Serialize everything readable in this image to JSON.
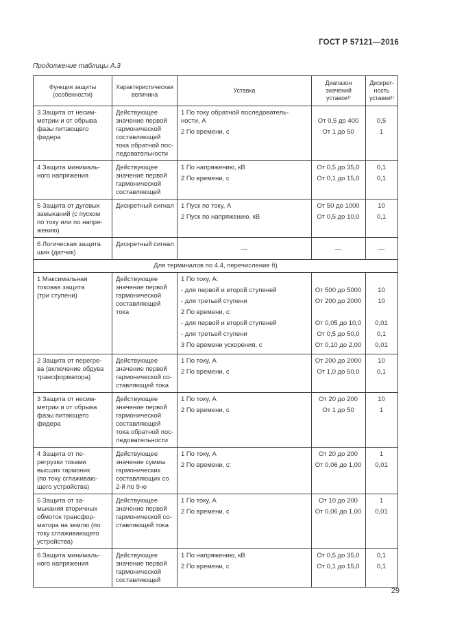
{
  "page": {
    "doc_code": "ГОСТ Р 57121—2016",
    "table_caption": "Продолжение таблицы А.3",
    "page_number": "29"
  },
  "colors": {
    "text": "#333333",
    "border": "#3f3f3f",
    "background": "#ffffff"
  },
  "table": {
    "columns": [
      {
        "label": "Функция защиты\n(особенности)"
      },
      {
        "label": "Характеристическая\nвеличина"
      },
      {
        "label": "Уставка"
      },
      {
        "label": "Диапазон\nзначений\nуставок¹⁾"
      },
      {
        "label": "Дискрет-\nность\nуставки¹⁾"
      }
    ],
    "sections": [
      {
        "header": null,
        "rows": [
          {
            "function": "3 Защита от несим-\nметрии и от обрыва\nфазы питающего\nфидера",
            "characteristic": "Действующее\nзначение первой\nгармонической\nсоставляющей\nтока обратной пос-\nледовательности",
            "settings": [
              {
                "text": "1 По току обратной последователь-\nности, А",
                "range": "От 0,5 до 400",
                "disc": "0,5"
              },
              {
                "text": "2 По времени, с",
                "range": "От 1 до 50",
                "disc": "1"
              }
            ]
          },
          {
            "function": "4 Защита минималь-\nного напряжения",
            "characteristic": "Действующее\nзначение первой\nгармонической\nсоставляющей",
            "settings": [
              {
                "text": "1 По напряжению, кВ",
                "range": "От 0,5 до 35,0",
                "disc": "0,1"
              },
              {
                "text": "2 По времени, с",
                "range": "От 0,1 до 15,0",
                "disc": "0,1"
              }
            ]
          },
          {
            "function": "5 Защита от дуговых\nзамыканий (с пуском\nпо току или по напря-\nжению)",
            "characteristic": "Дискретный сигнал",
            "settings": [
              {
                "text": "1 Пуск по току, А",
                "range": "От 50 до 1000",
                "disc": "10"
              },
              {
                "text": "2 Пуск по напряжению, кВ",
                "range": "От 0,5 до 10,0",
                "disc": "0,1"
              }
            ]
          },
          {
            "function": "6 Логическая защита\nшин (датчик)",
            "characteristic": "Дискретный сигнал",
            "settings": [
              {
                "text": "—",
                "range": "—",
                "disc": "—",
                "dash": true
              }
            ]
          }
        ]
      },
      {
        "header": "Для терминалов по 4.4, перечисление б)",
        "rows": [
          {
            "function": "1 Максимальная\nтоковая защита\n(три ступени)",
            "characteristic": "Действующее\nзначение первой\nгармонической\nсоставляющей\nтока",
            "settings": [
              {
                "text": "1 По току, А:",
                "range": "",
                "disc": ""
              },
              {
                "text": "- для первой и второй ступеней",
                "range": "От 500 до 5000",
                "disc": "10"
              },
              {
                "text": "- для третьей ступени",
                "range": "От 200 до 2000",
                "disc": "10"
              },
              {
                "text": "2 По времени, с:",
                "range": "",
                "disc": ""
              },
              {
                "text": "- для первой и второй ступеней",
                "range": "От 0,05 до 10,0",
                "disc": "0,01"
              },
              {
                "text": "- для третьей ступени",
                "range": "От 0,5 до 50,0",
                "disc": "0,1"
              },
              {
                "text": "3 По времени ускорения, с",
                "range": "От 0,10 до 2,00",
                "disc": "0,01"
              }
            ]
          },
          {
            "function": "2 Защита от перегре-\nва (включение обдува\nтрансформатора)",
            "characteristic": "Действующее\nзначение первой\nгармонической со-\nставляющей тока",
            "settings": [
              {
                "text": "1 По току, А",
                "range": "От 200 до 2000",
                "disc": "10"
              },
              {
                "text": "2 По времени, с",
                "range": "От 1,0 до 50,0",
                "disc": "0,1"
              }
            ]
          },
          {
            "function": "3 Защита от несим-\nметрии и от обрыва\nфазы питающего\nфидера",
            "characteristic": "Действующее\nзначение первой\nгармонической\nсоставляющей\nтока обратной пос-\nледовательности",
            "settings": [
              {
                "text": "1 По току, А",
                "range": "От 20 до 200",
                "disc": "10"
              },
              {
                "text": "2 По времени, с",
                "range": "От 1 до 50",
                "disc": "1"
              }
            ]
          },
          {
            "function": "4 Защита от пе-\nрегрузки токами\nвысших гармоник\n(по току сглаживаю-\nщего устройства)",
            "characteristic": "Действующее\nзначение суммы\nгармонических\nсоставляющих со\n2-й по 9-ю",
            "settings": [
              {
                "text": "1 По току, А",
                "range": "От 20 до 200",
                "disc": "1"
              },
              {
                "text": "2 По времени, с:",
                "range": "От 0,06 до 1,00",
                "disc": "0,01"
              }
            ]
          },
          {
            "function": "5 Защита от за-\nмыкания вторичных\nобмоток трансфор-\nматора на землю (по\nтоку сглаживающего\nустройства)",
            "characteristic": "Действующее\nзначение первой\nгармонической со-\nставляющей тока",
            "settings": [
              {
                "text": "1 По току, А",
                "range": "От 10 до 200",
                "disc": "1"
              },
              {
                "text": "2 По времени, с",
                "range": "От 0,06 до 1,00",
                "disc": "0,01"
              }
            ]
          },
          {
            "function": "6 Защита минималь-\nного напряжения",
            "characteristic": "Действующее\nзначение первой\nгармонической\nсоставляющей",
            "settings": [
              {
                "text": "1 По напряжению, кВ",
                "range": "От 0,5 до 35,0",
                "disc": "0,1"
              },
              {
                "text": "2 По времени, с",
                "range": "От 0,1 до 15,0",
                "disc": "0,1"
              }
            ]
          }
        ]
      }
    ]
  }
}
